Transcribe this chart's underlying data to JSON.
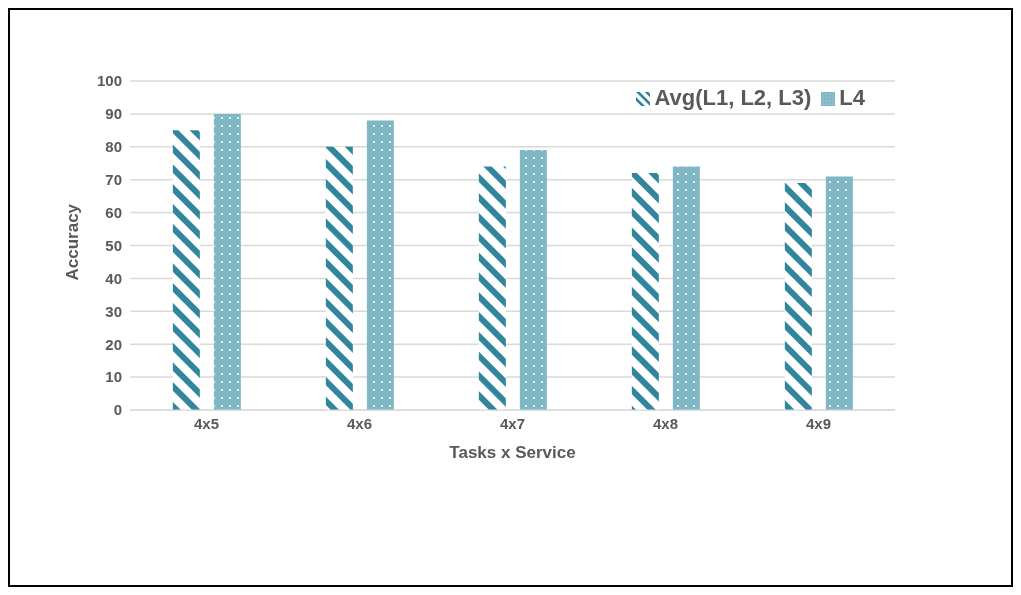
{
  "chart_data": {
    "type": "bar",
    "xlabel": "Tasks x Service",
    "ylabel": "Accuracy",
    "categories": [
      "4x5",
      "4x6",
      "4x7",
      "4x8",
      "4x9"
    ],
    "series": [
      {
        "name": "Avg(L1, L2, L3)",
        "color": "#31859c",
        "values": [
          85,
          80,
          74,
          72,
          69
        ]
      },
      {
        "name": "L4",
        "color": "#7fb7c5",
        "values": [
          90,
          88,
          79,
          74,
          71
        ]
      }
    ],
    "ylim": [
      0,
      100
    ],
    "yticks": [
      0,
      10,
      20,
      30,
      40,
      50,
      60,
      70,
      80,
      90,
      100
    ],
    "grid": "y",
    "legend": "top right"
  }
}
